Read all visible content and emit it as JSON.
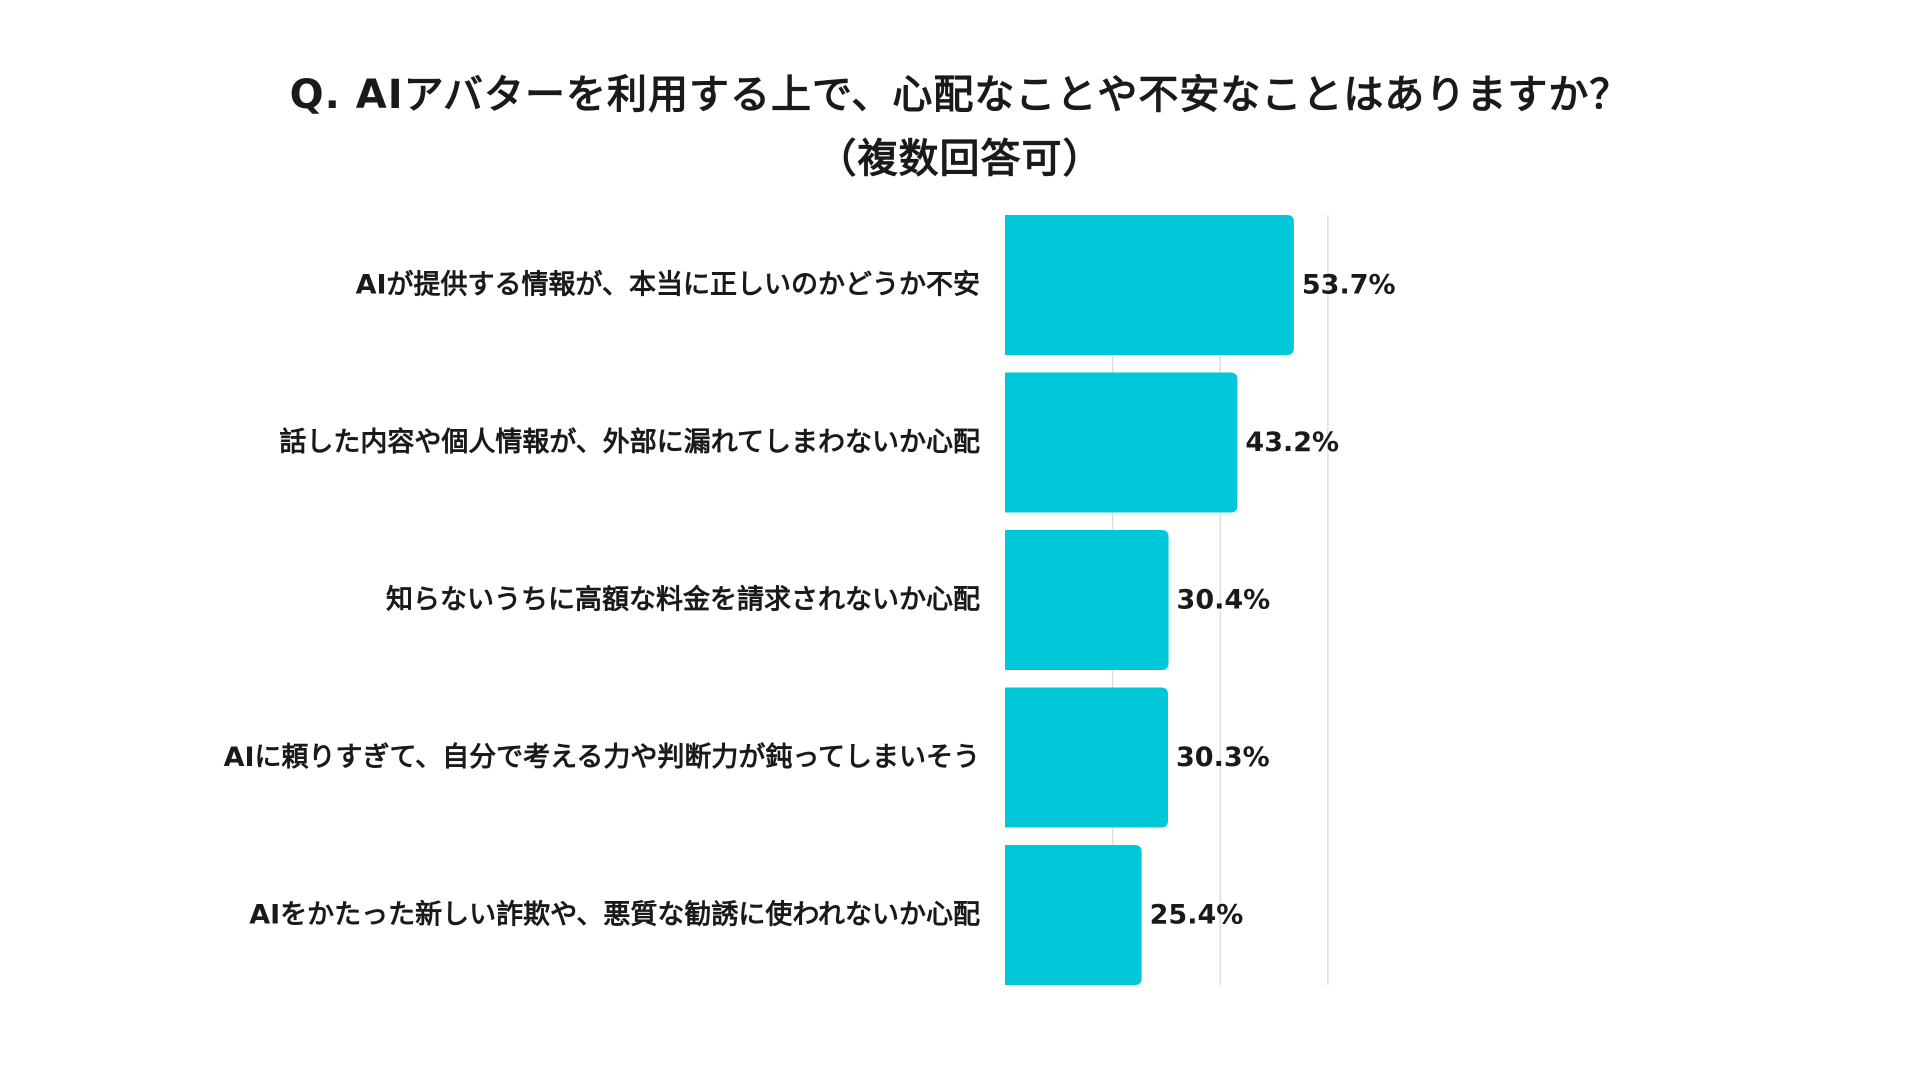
{
  "title": {
    "line1": "Q. AIアバターを利用する上で、心配なことや不安なことはありますか？",
    "line2": "（複数回答可）"
  },
  "chart_data": {
    "type": "bar",
    "orientation": "horizontal",
    "categories": [
      "AIが提供する情報が、本当に正しいのかどうか不安",
      "話した内容や個人情報が、外部に漏れてしまわないか心配",
      "知らないうちに高額な料金を請求されないか心配",
      "AIに頼りすぎて、自分で考える力や判断力が鈍ってしまいそう",
      "AIをかたった新しい詐欺や、悪質な勧誘に使われないか心配"
    ],
    "values": [
      53.7,
      43.2,
      30.4,
      30.3,
      25.4
    ],
    "value_labels": [
      "53.7%",
      "43.2%",
      "30.4%",
      "30.3%",
      "25.4%"
    ],
    "unit": "%",
    "xlim": [
      0,
      60
    ],
    "grid": true,
    "bar_color": "#00c8d9",
    "grid_color": "#dedede"
  }
}
